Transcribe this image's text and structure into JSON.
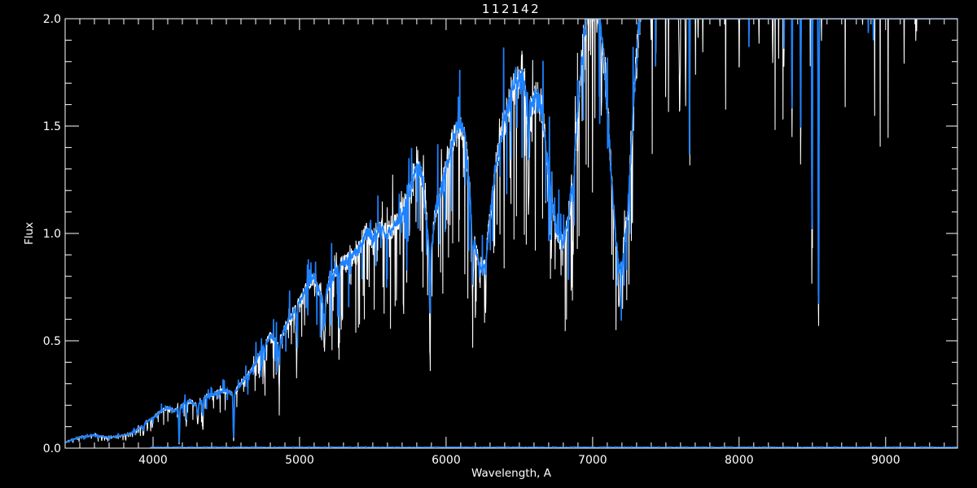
{
  "window": {
    "background": "#000000"
  },
  "chart_data": {
    "type": "line",
    "title": "112142",
    "xlabel": "Wavelength, A",
    "ylabel": "Flux",
    "xlim": [
      3400,
      9490
    ],
    "ylim": [
      0.0,
      2.0
    ],
    "grid": false,
    "legend": "none",
    "axis_color": "#ffffff",
    "background_color": "#000000",
    "x_major_ticks": {
      "values": [
        4000,
        5000,
        6000,
        7000,
        8000,
        9000
      ],
      "labels": [
        "4000",
        "5000",
        "6000",
        "7000",
        "8000",
        "9000"
      ]
    },
    "x_minor_step": 100,
    "y_major_ticks": {
      "values": [
        0.0,
        0.5,
        1.0,
        1.5,
        2.0
      ],
      "labels": [
        "0.0",
        "0.5",
        "1.0",
        "1.5",
        "2.0"
      ]
    },
    "y_minor_step": 0.1,
    "series": [
      {
        "name": "observed-spectrum",
        "color": "#ffffff",
        "style": "noisy",
        "stroke_width": 1.05
      },
      {
        "name": "smoothed-spectrum",
        "color": "#1e82ff",
        "style": "smooth",
        "stroke_width": 1.7
      },
      {
        "name": "zero-level-line",
        "color": "#1e82ff",
        "style": "flat",
        "level": 0.004,
        "x_start": 3980,
        "x_end": 9488,
        "stroke_width": 1.3
      }
    ],
    "clip_max_flux": 2.0,
    "continuum_anchors": [
      [
        3400,
        0.025
      ],
      [
        3450,
        0.04
      ],
      [
        3500,
        0.05
      ],
      [
        3550,
        0.055
      ],
      [
        3600,
        0.06
      ],
      [
        3650,
        0.055
      ],
      [
        3700,
        0.05
      ],
      [
        3750,
        0.055
      ],
      [
        3800,
        0.06
      ],
      [
        3850,
        0.07
      ],
      [
        3900,
        0.09
      ],
      [
        3950,
        0.12
      ],
      [
        4000,
        0.14
      ],
      [
        4050,
        0.17
      ],
      [
        4100,
        0.19
      ],
      [
        4150,
        0.175
      ],
      [
        4200,
        0.2
      ],
      [
        4250,
        0.22
      ],
      [
        4300,
        0.2
      ],
      [
        4350,
        0.235
      ],
      [
        4400,
        0.25
      ],
      [
        4450,
        0.26
      ],
      [
        4500,
        0.27
      ],
      [
        4550,
        0.25
      ],
      [
        4600,
        0.3
      ],
      [
        4650,
        0.34
      ],
      [
        4700,
        0.4
      ],
      [
        4750,
        0.47
      ],
      [
        4800,
        0.52
      ],
      [
        4860,
        0.48
      ],
      [
        4900,
        0.56
      ],
      [
        4950,
        0.62
      ],
      [
        5000,
        0.68
      ],
      [
        5050,
        0.75
      ],
      [
        5100,
        0.8
      ],
      [
        5160,
        0.68
      ],
      [
        5200,
        0.76
      ],
      [
        5250,
        0.83
      ],
      [
        5300,
        0.86
      ],
      [
        5400,
        0.92
      ],
      [
        5450,
        1.0
      ],
      [
        5500,
        0.97
      ],
      [
        5550,
        1.02
      ],
      [
        5600,
        1.0
      ],
      [
        5650,
        1.04
      ],
      [
        5700,
        1.09
      ],
      [
        5750,
        1.18
      ],
      [
        5800,
        1.32
      ],
      [
        5840,
        1.26
      ],
      [
        5890,
        0.88
      ],
      [
        5930,
        1.1
      ],
      [
        5980,
        1.25
      ],
      [
        6030,
        1.4
      ],
      [
        6080,
        1.5
      ],
      [
        6130,
        1.45
      ],
      [
        6160,
        1.2
      ],
      [
        6200,
        0.92
      ],
      [
        6250,
        0.82
      ],
      [
        6280,
        0.95
      ],
      [
        6320,
        1.2
      ],
      [
        6360,
        1.4
      ],
      [
        6420,
        1.58
      ],
      [
        6470,
        1.7
      ],
      [
        6520,
        1.75
      ],
      [
        6560,
        1.55
      ],
      [
        6600,
        1.62
      ],
      [
        6650,
        1.6
      ],
      [
        6680,
        1.4
      ],
      [
        6720,
        1.15
      ],
      [
        6760,
        1.0
      ],
      [
        6800,
        0.95
      ],
      [
        6840,
        1.1
      ],
      [
        6880,
        1.4
      ],
      [
        6920,
        1.75
      ],
      [
        6960,
        2.05
      ],
      [
        7000,
        2.15
      ],
      [
        7040,
        2.05
      ],
      [
        7080,
        1.8
      ],
      [
        7120,
        1.35
      ],
      [
        7160,
        0.95
      ],
      [
        7200,
        0.82
      ],
      [
        7240,
        1.1
      ],
      [
        7280,
        1.6
      ],
      [
        7320,
        2.0
      ],
      [
        7360,
        2.25
      ],
      [
        7450,
        2.45
      ],
      [
        7550,
        2.5
      ],
      [
        7650,
        2.4
      ],
      [
        7750,
        2.55
      ],
      [
        7900,
        2.6
      ],
      [
        8100,
        2.6
      ],
      [
        8300,
        2.6
      ],
      [
        8500,
        2.55
      ],
      [
        8700,
        2.6
      ],
      [
        9000,
        2.6
      ],
      [
        9250,
        2.6
      ],
      [
        9490,
        2.6
      ]
    ],
    "absorption_lines": [
      {
        "wl": 3934,
        "width": 10,
        "depth_white": 0.45,
        "depth_blue": 0.25
      },
      {
        "wl": 4178,
        "width": 7,
        "depth_white": 0.92,
        "depth_blue": 0.88
      },
      {
        "wl": 4227,
        "width": 6,
        "depth_white": 0.5,
        "depth_blue": 0.25
      },
      {
        "wl": 4305,
        "width": 10,
        "depth_white": 0.45,
        "depth_blue": 0.25
      },
      {
        "wl": 4340,
        "width": 7,
        "depth_white": 0.65,
        "depth_blue": 0.35
      },
      {
        "wl": 4550,
        "width": 8,
        "depth_white": 0.88,
        "depth_blue": 0.82
      },
      {
        "wl": 4762,
        "width": 8,
        "depth_white": 0.3,
        "depth_blue": 0.15
      },
      {
        "wl": 4861,
        "width": 8,
        "depth_white": 0.45,
        "depth_blue": 0.2
      },
      {
        "wl": 4980,
        "width": 7,
        "depth_white": 0.4,
        "depth_blue": 0.15
      },
      {
        "wl": 5170,
        "width": 12,
        "depth_white": 0.35,
        "depth_blue": 0.18
      },
      {
        "wl": 5270,
        "width": 7,
        "depth_white": 0.3,
        "depth_blue": 0.12
      },
      {
        "wl": 5890,
        "width": 8,
        "depth_white": 0.5,
        "depth_blue": 0.3
      },
      {
        "wl": 6180,
        "width": 14,
        "depth_white": 0.3,
        "depth_blue": 0.12
      },
      {
        "wl": 6270,
        "width": 8,
        "depth_white": 0.28,
        "depth_blue": 0.1
      },
      {
        "wl": 6563,
        "width": 8,
        "depth_white": 0.3,
        "depth_blue": 0.12
      },
      {
        "wl": 6717,
        "width": 6,
        "depth_white": 0.25,
        "depth_blue": 0.1
      },
      {
        "wl": 6867,
        "width": 10,
        "depth_white": 0.32,
        "depth_blue": 0.1
      },
      {
        "wl": 7000,
        "width": 5,
        "depth_white": 0.22,
        "depth_blue": 0
      },
      {
        "wl": 7060,
        "width": 5,
        "depth_white": 0.2,
        "depth_blue": 0
      },
      {
        "wl": 7180,
        "width": 10,
        "depth_white": 0.28,
        "depth_blue": 0.08
      },
      {
        "wl": 7400,
        "width": 7,
        "depth_white": 0.2,
        "depth_blue": 0
      },
      {
        "wl": 7594,
        "width": 13,
        "depth_white": 0.36,
        "depth_blue": 0
      },
      {
        "wl": 7635,
        "width": 9,
        "depth_white": 0.33,
        "depth_blue": 0
      },
      {
        "wl": 7661,
        "width": 5,
        "depth_white": 0.38,
        "depth_blue": 0.45
      },
      {
        "wl": 7720,
        "width": 5,
        "depth_white": 0.25,
        "depth_blue": 0
      },
      {
        "wl": 7870,
        "width": 5,
        "depth_white": 0.25,
        "depth_blue": 0
      },
      {
        "wl": 8000,
        "width": 6,
        "depth_white": 0.33,
        "depth_blue": 0
      },
      {
        "wl": 8067,
        "width": 5,
        "depth_white": 0.28,
        "depth_blue": 0.3
      },
      {
        "wl": 8135,
        "width": 5,
        "depth_white": 0.28,
        "depth_blue": 0
      },
      {
        "wl": 8230,
        "width": 7,
        "depth_white": 0.33,
        "depth_blue": 0.12
      },
      {
        "wl": 8306,
        "width": 6,
        "depth_white": 0.33,
        "depth_blue": 0.27
      },
      {
        "wl": 8361,
        "width": 6,
        "depth_white": 0.44,
        "depth_blue": 0.39
      },
      {
        "wl": 8420,
        "width": 6,
        "depth_white": 0.48,
        "depth_blue": 0.43
      },
      {
        "wl": 8498,
        "width": 7,
        "depth_white": 0.64,
        "depth_blue": 0.6
      },
      {
        "wl": 8542,
        "width": 8,
        "depth_white": 0.78,
        "depth_blue": 0.75
      },
      {
        "wl": 8860,
        "width": 5,
        "depth_white": 0.22,
        "depth_blue": 0
      },
      {
        "wl": 9050,
        "width": 5,
        "depth_white": 0.2,
        "depth_blue": 0
      },
      {
        "wl": 9150,
        "width": 5,
        "depth_white": 0.18,
        "depth_blue": 0
      }
    ],
    "noise": {
      "seed_white": 1234,
      "seed_blue": 99,
      "seed_zero": 7,
      "sample_step": 1.5,
      "white_amp": 0.07,
      "blue_amp": 0.05,
      "white_spike_prob_dense": 0.1,
      "white_spike_prob_sparse": 0.03,
      "white_spike_depth": 0.45,
      "white_up_prob": 0.025,
      "white_up_amp": 0.2,
      "blue_spike_prob_dense": 0.045,
      "blue_spike_prob_sparse": 0.008,
      "blue_spike_depth": 0.3,
      "blue_up_prob": 0.03,
      "blue_up_amp": 0.25,
      "dense_region_max_wl": 7300
    }
  }
}
